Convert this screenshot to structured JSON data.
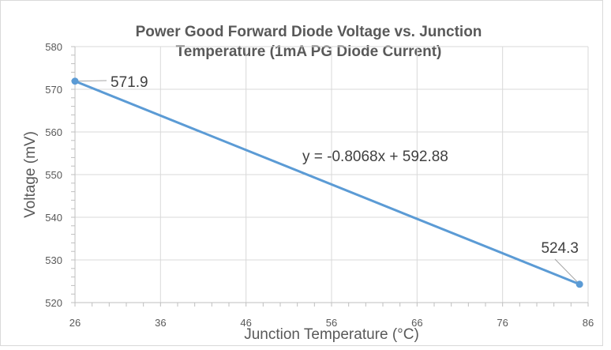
{
  "chart_data": {
    "type": "line",
    "title_line1": "Power Good Forward Diode Voltage vs. Junction",
    "title_line2": "Temperature (1mA PG Diode Current)",
    "xlabel": "Junction Temperature (°C)",
    "ylabel": "Voltage (mV)",
    "xlim": [
      26,
      86
    ],
    "ylim": [
      520,
      580
    ],
    "x_ticks": [
      26,
      36,
      46,
      56,
      66,
      76,
      86
    ],
    "y_ticks": [
      520,
      530,
      540,
      550,
      560,
      570,
      580
    ],
    "grid": true,
    "series": [
      {
        "x": [
          26,
          85
        ],
        "y": [
          571.9,
          524.3
        ],
        "color": "#5b9bd5"
      }
    ],
    "data_labels": [
      "571.9",
      "524.3"
    ],
    "trendline_label": "y = -0.8068x + 592.88"
  }
}
